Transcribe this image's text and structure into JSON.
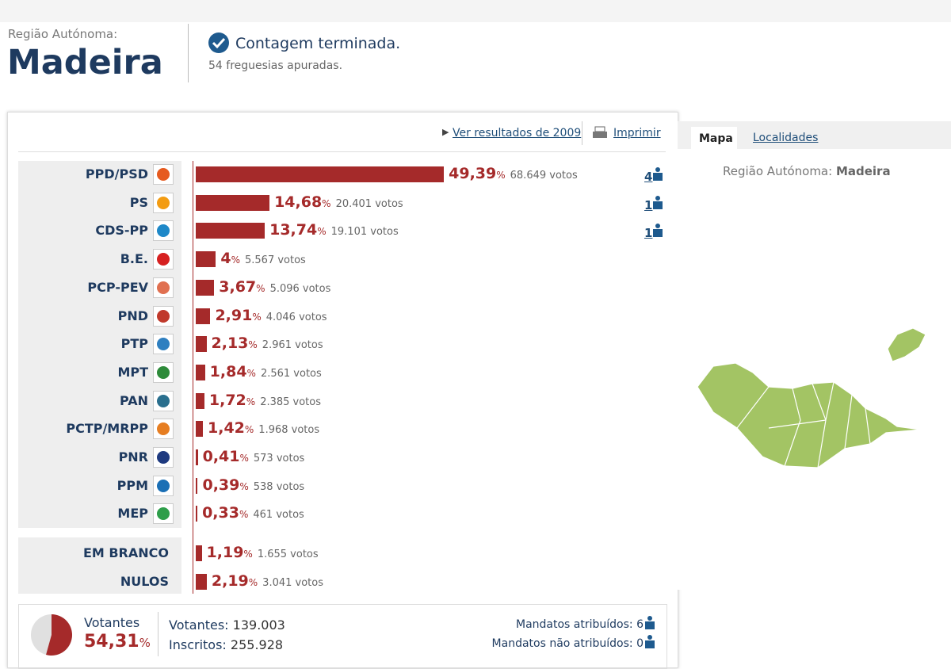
{
  "header": {
    "region_label": "Região Autónoma:",
    "region": "Madeira",
    "status": "Contagem terminada.",
    "status_detail": "54 freguesias apuradas."
  },
  "links": {
    "previous": "Ver resultados de 2009",
    "print": "Imprimir"
  },
  "tabs": [
    "Mapa",
    "Localidades"
  ],
  "map": {
    "label": "Região Autónoma:",
    "region": "Madeira"
  },
  "results": {
    "percent_unit": "%",
    "parties": [
      {
        "name": "PPD/PSD",
        "percent": 49.39,
        "percent_label": "49,39",
        "votes": "68.649 votos",
        "seats": 4
      },
      {
        "name": "PS",
        "percent": 14.68,
        "percent_label": "14,68",
        "votes": "20.401 votos",
        "seats": 1
      },
      {
        "name": "CDS-PP",
        "percent": 13.74,
        "percent_label": "13,74",
        "votes": "19.101 votos",
        "seats": 1
      },
      {
        "name": "B.E.",
        "percent": 4,
        "percent_label": "4",
        "votes": "5.567 votos"
      },
      {
        "name": "PCP-PEV",
        "percent": 3.67,
        "percent_label": "3,67",
        "votes": "5.096 votos"
      },
      {
        "name": "PND",
        "percent": 2.91,
        "percent_label": "2,91",
        "votes": "4.046 votos"
      },
      {
        "name": "PTP",
        "percent": 2.13,
        "percent_label": "2,13",
        "votes": "2.961 votos"
      },
      {
        "name": "MPT",
        "percent": 1.84,
        "percent_label": "1,84",
        "votes": "2.561 votos"
      },
      {
        "name": "PAN",
        "percent": 1.72,
        "percent_label": "1,72",
        "votes": "2.385 votos"
      },
      {
        "name": "PCTP/MRPP",
        "percent": 1.42,
        "percent_label": "1,42",
        "votes": "1.968 votos"
      },
      {
        "name": "PNR",
        "percent": 0.41,
        "percent_label": "0,41",
        "votes": "573 votos"
      },
      {
        "name": "PPM",
        "percent": 0.39,
        "percent_label": "0,39",
        "votes": "538 votos"
      },
      {
        "name": "MEP",
        "percent": 0.33,
        "percent_label": "0,33",
        "votes": "461 votos"
      }
    ],
    "other": [
      {
        "name": "EM BRANCO",
        "percent": 1.19,
        "percent_label": "1,19",
        "votes": "1.655 votos"
      },
      {
        "name": "NULOS",
        "percent": 2.19,
        "percent_label": "2,19",
        "votes": "3.041 votos"
      }
    ]
  },
  "summary": {
    "turnout_label": "Votantes",
    "turnout": 54.31,
    "turnout_text": "54,31",
    "percent_unit": "%",
    "voters_label": "Votantes:",
    "voters": "139.003",
    "registered_label": "Inscritos:",
    "registered": "255.928",
    "seats_assigned_label": "Mandatos atribuídos:",
    "seats_assigned": 6,
    "seats_unassigned_label": "Mandatos não atribuídos:",
    "seats_unassigned": 0
  }
}
